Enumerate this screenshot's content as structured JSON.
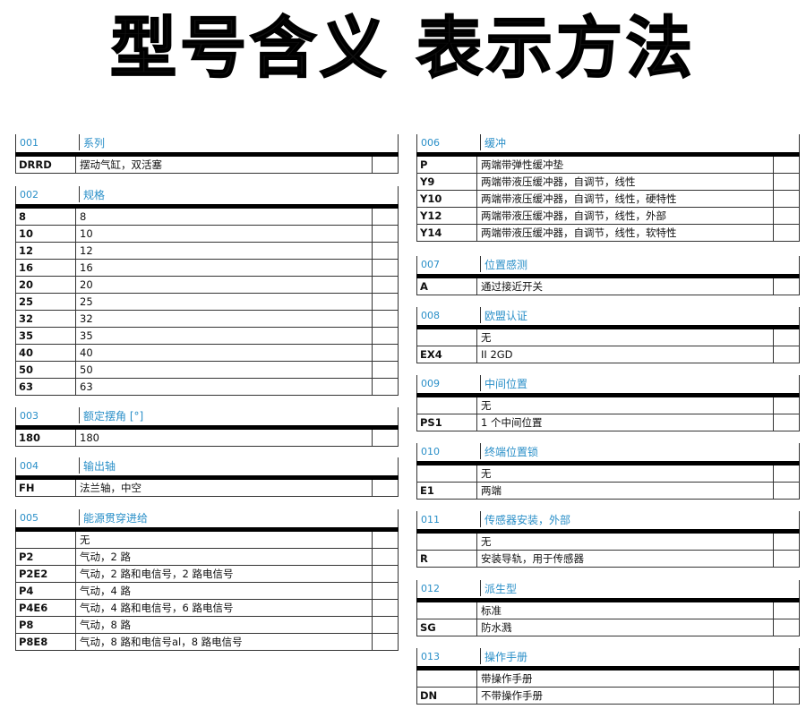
{
  "title": "型号含义 表示方法",
  "tables": [
    {
      "num": "001",
      "title": "系列",
      "side": "left",
      "rows": [
        [
          "DRRD",
          "摆动气缸，双活塞"
        ]
      ]
    },
    {
      "num": "002",
      "title": "规格",
      "side": "left",
      "rows": [
        [
          "8",
          "8"
        ],
        [
          "10",
          "10"
        ],
        [
          "12",
          "12"
        ],
        [
          "16",
          "16"
        ],
        [
          "20",
          "20"
        ],
        [
          "25",
          "25"
        ],
        [
          "32",
          "32"
        ],
        [
          "35",
          "35"
        ],
        [
          "40",
          "40"
        ],
        [
          "50",
          "50"
        ],
        [
          "63",
          "63"
        ]
      ]
    },
    {
      "num": "003",
      "title": "额定摆角 [°]",
      "side": "left",
      "rows": [
        [
          "180",
          "180"
        ]
      ]
    },
    {
      "num": "004",
      "title": "输出轴",
      "side": "left",
      "rows": [
        [
          "FH",
          "法兰轴，中空"
        ]
      ]
    },
    {
      "num": "005",
      "title": "能源贯穿进给",
      "side": "left",
      "rows": [
        [
          "",
          "无"
        ],
        [
          "P2",
          "气动，2 路"
        ],
        [
          "P2E2",
          "气动，2 路和电信号，2 路电信号"
        ],
        [
          "P4",
          "气动，4 路"
        ],
        [
          "P4E6",
          "气动，4 路和电信号，6 路电信号"
        ],
        [
          "P8",
          "气动，8 路"
        ],
        [
          "P8E8",
          "气动，8 路和电信号al，8 路电信号"
        ]
      ]
    },
    {
      "num": "006",
      "title": "缓冲",
      "side": "right",
      "rows": [
        [
          "P",
          "两端带弹性缓冲垫"
        ],
        [
          "Y9",
          "两端带液压缓冲器，自调节，线性"
        ],
        [
          "Y10",
          "两端带液压缓冲器，自调节，线性，硬特性"
        ],
        [
          "Y12",
          "两端带液压缓冲器，自调节，线性，外部"
        ],
        [
          "Y14",
          "两端带液压缓冲器，自调节，线性，软特性"
        ]
      ]
    },
    {
      "num": "007",
      "title": "位置感测",
      "side": "right",
      "rows": [
        [
          "A",
          "通过接近开关"
        ]
      ]
    },
    {
      "num": "008",
      "title": "欧盟认证",
      "side": "right",
      "rows": [
        [
          "",
          "无"
        ],
        [
          "EX4",
          "II 2GD"
        ]
      ]
    },
    {
      "num": "009",
      "title": "中间位置",
      "side": "right",
      "rows": [
        [
          "",
          "无"
        ],
        [
          "PS1",
          "1 个中间位置"
        ]
      ]
    },
    {
      "num": "010",
      "title": "终端位置锁",
      "side": "right",
      "rows": [
        [
          "",
          "无"
        ],
        [
          "E1",
          "两端"
        ]
      ]
    },
    {
      "num": "011",
      "title": "传感器安装，外部",
      "side": "right",
      "rows": [
        [
          "",
          "无"
        ],
        [
          "R",
          "安装导轨，用于传感器"
        ]
      ]
    },
    {
      "num": "012",
      "title": "派生型",
      "side": "right",
      "rows": [
        [
          "",
          "标准"
        ],
        [
          "SG",
          "防水溅"
        ]
      ]
    },
    {
      "num": "013",
      "title": "操作手册",
      "side": "right",
      "rows": [
        [
          "",
          "带操作手册"
        ],
        [
          "DN",
          "不带操作手册"
        ]
      ]
    }
  ],
  "colors": {
    "header_text": "#2a8fc8",
    "rule": "#000000"
  }
}
